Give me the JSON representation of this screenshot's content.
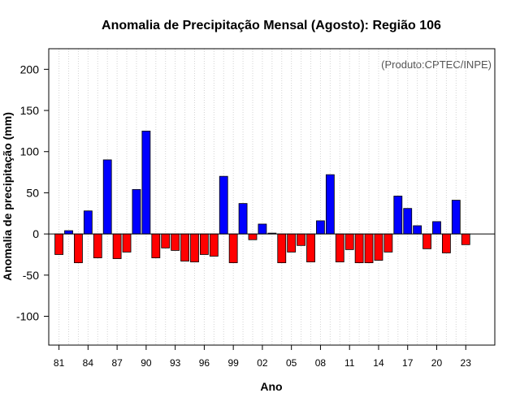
{
  "chart_data": {
    "type": "bar",
    "title": "Anomalia de Precipitação Mensal (Agosto): Região 106",
    "xlabel": "Ano",
    "ylabel": "Anomalia de precipitação (mm)",
    "annotation": "(Produto:CPTEC/INPE)",
    "ylim": [
      -135,
      225
    ],
    "yticks": [
      -100,
      -50,
      0,
      50,
      100,
      150,
      200
    ],
    "grid": "vertical dotted",
    "x": [
      1981,
      1982,
      1983,
      1984,
      1985,
      1986,
      1987,
      1988,
      1989,
      1990,
      1991,
      1992,
      1993,
      1994,
      1995,
      1996,
      1997,
      1998,
      1999,
      2000,
      2001,
      2002,
      2003,
      2004,
      2005,
      2006,
      2007,
      2008,
      2009,
      2010,
      2011,
      2012,
      2013,
      2014,
      2015,
      2016,
      2017,
      2018,
      2019,
      2020,
      2021,
      2022,
      2023
    ],
    "values": [
      -25,
      4,
      -35,
      28,
      -29,
      90,
      -30,
      -22,
      54,
      125,
      -29,
      -17,
      -20,
      -33,
      -34,
      -25,
      -27,
      70,
      -35,
      37,
      -7,
      12,
      1,
      -35,
      -22,
      -14,
      -34,
      16,
      72,
      -34,
      -19,
      -35,
      -35,
      -32,
      -22,
      46,
      31,
      10,
      -18,
      15,
      -23,
      41,
      -13
    ],
    "tick_labels": [
      {
        "year": 1981,
        "label": "81"
      },
      {
        "year": 1984,
        "label": "84"
      },
      {
        "year": 1987,
        "label": "87"
      },
      {
        "year": 1990,
        "label": "90"
      },
      {
        "year": 1993,
        "label": "93"
      },
      {
        "year": 1996,
        "label": "96"
      },
      {
        "year": 1999,
        "label": "99"
      },
      {
        "year": 2002,
        "label": "02"
      },
      {
        "year": 2005,
        "label": "05"
      },
      {
        "year": 2008,
        "label": "08"
      },
      {
        "year": 2011,
        "label": "11"
      },
      {
        "year": 2014,
        "label": "14"
      },
      {
        "year": 2017,
        "label": "17"
      },
      {
        "year": 2020,
        "label": "20"
      },
      {
        "year": 2023,
        "label": "23"
      }
    ],
    "colors": {
      "positive": "#0000ff",
      "negative": "#ff0000",
      "outline": "#000000",
      "grid": "#d3d3d3"
    }
  }
}
